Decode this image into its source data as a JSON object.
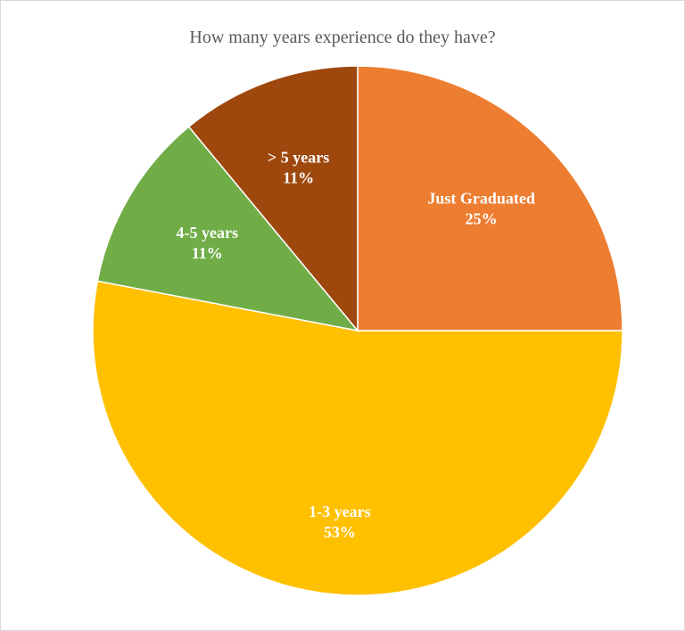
{
  "chart_data": {
    "type": "pie",
    "title": "How many years experience do they have?",
    "slices": [
      {
        "label": "Just Graduated",
        "value": 25,
        "value_label": "25%",
        "color": "#ED7D31"
      },
      {
        "label": "1-3 years",
        "value": 53,
        "value_label": "53%",
        "color": "#FFC000"
      },
      {
        "label": "4-5 years",
        "value": 11,
        "value_label": "11%",
        "color": "#70AD47"
      },
      {
        "label": "> 5 years",
        "value": 11,
        "value_label": "11%",
        "color": "#9E480E"
      }
    ],
    "start_angle_deg": 0,
    "direction": "clockwise",
    "slice_border_color": "#ffffff",
    "legend": "none"
  }
}
